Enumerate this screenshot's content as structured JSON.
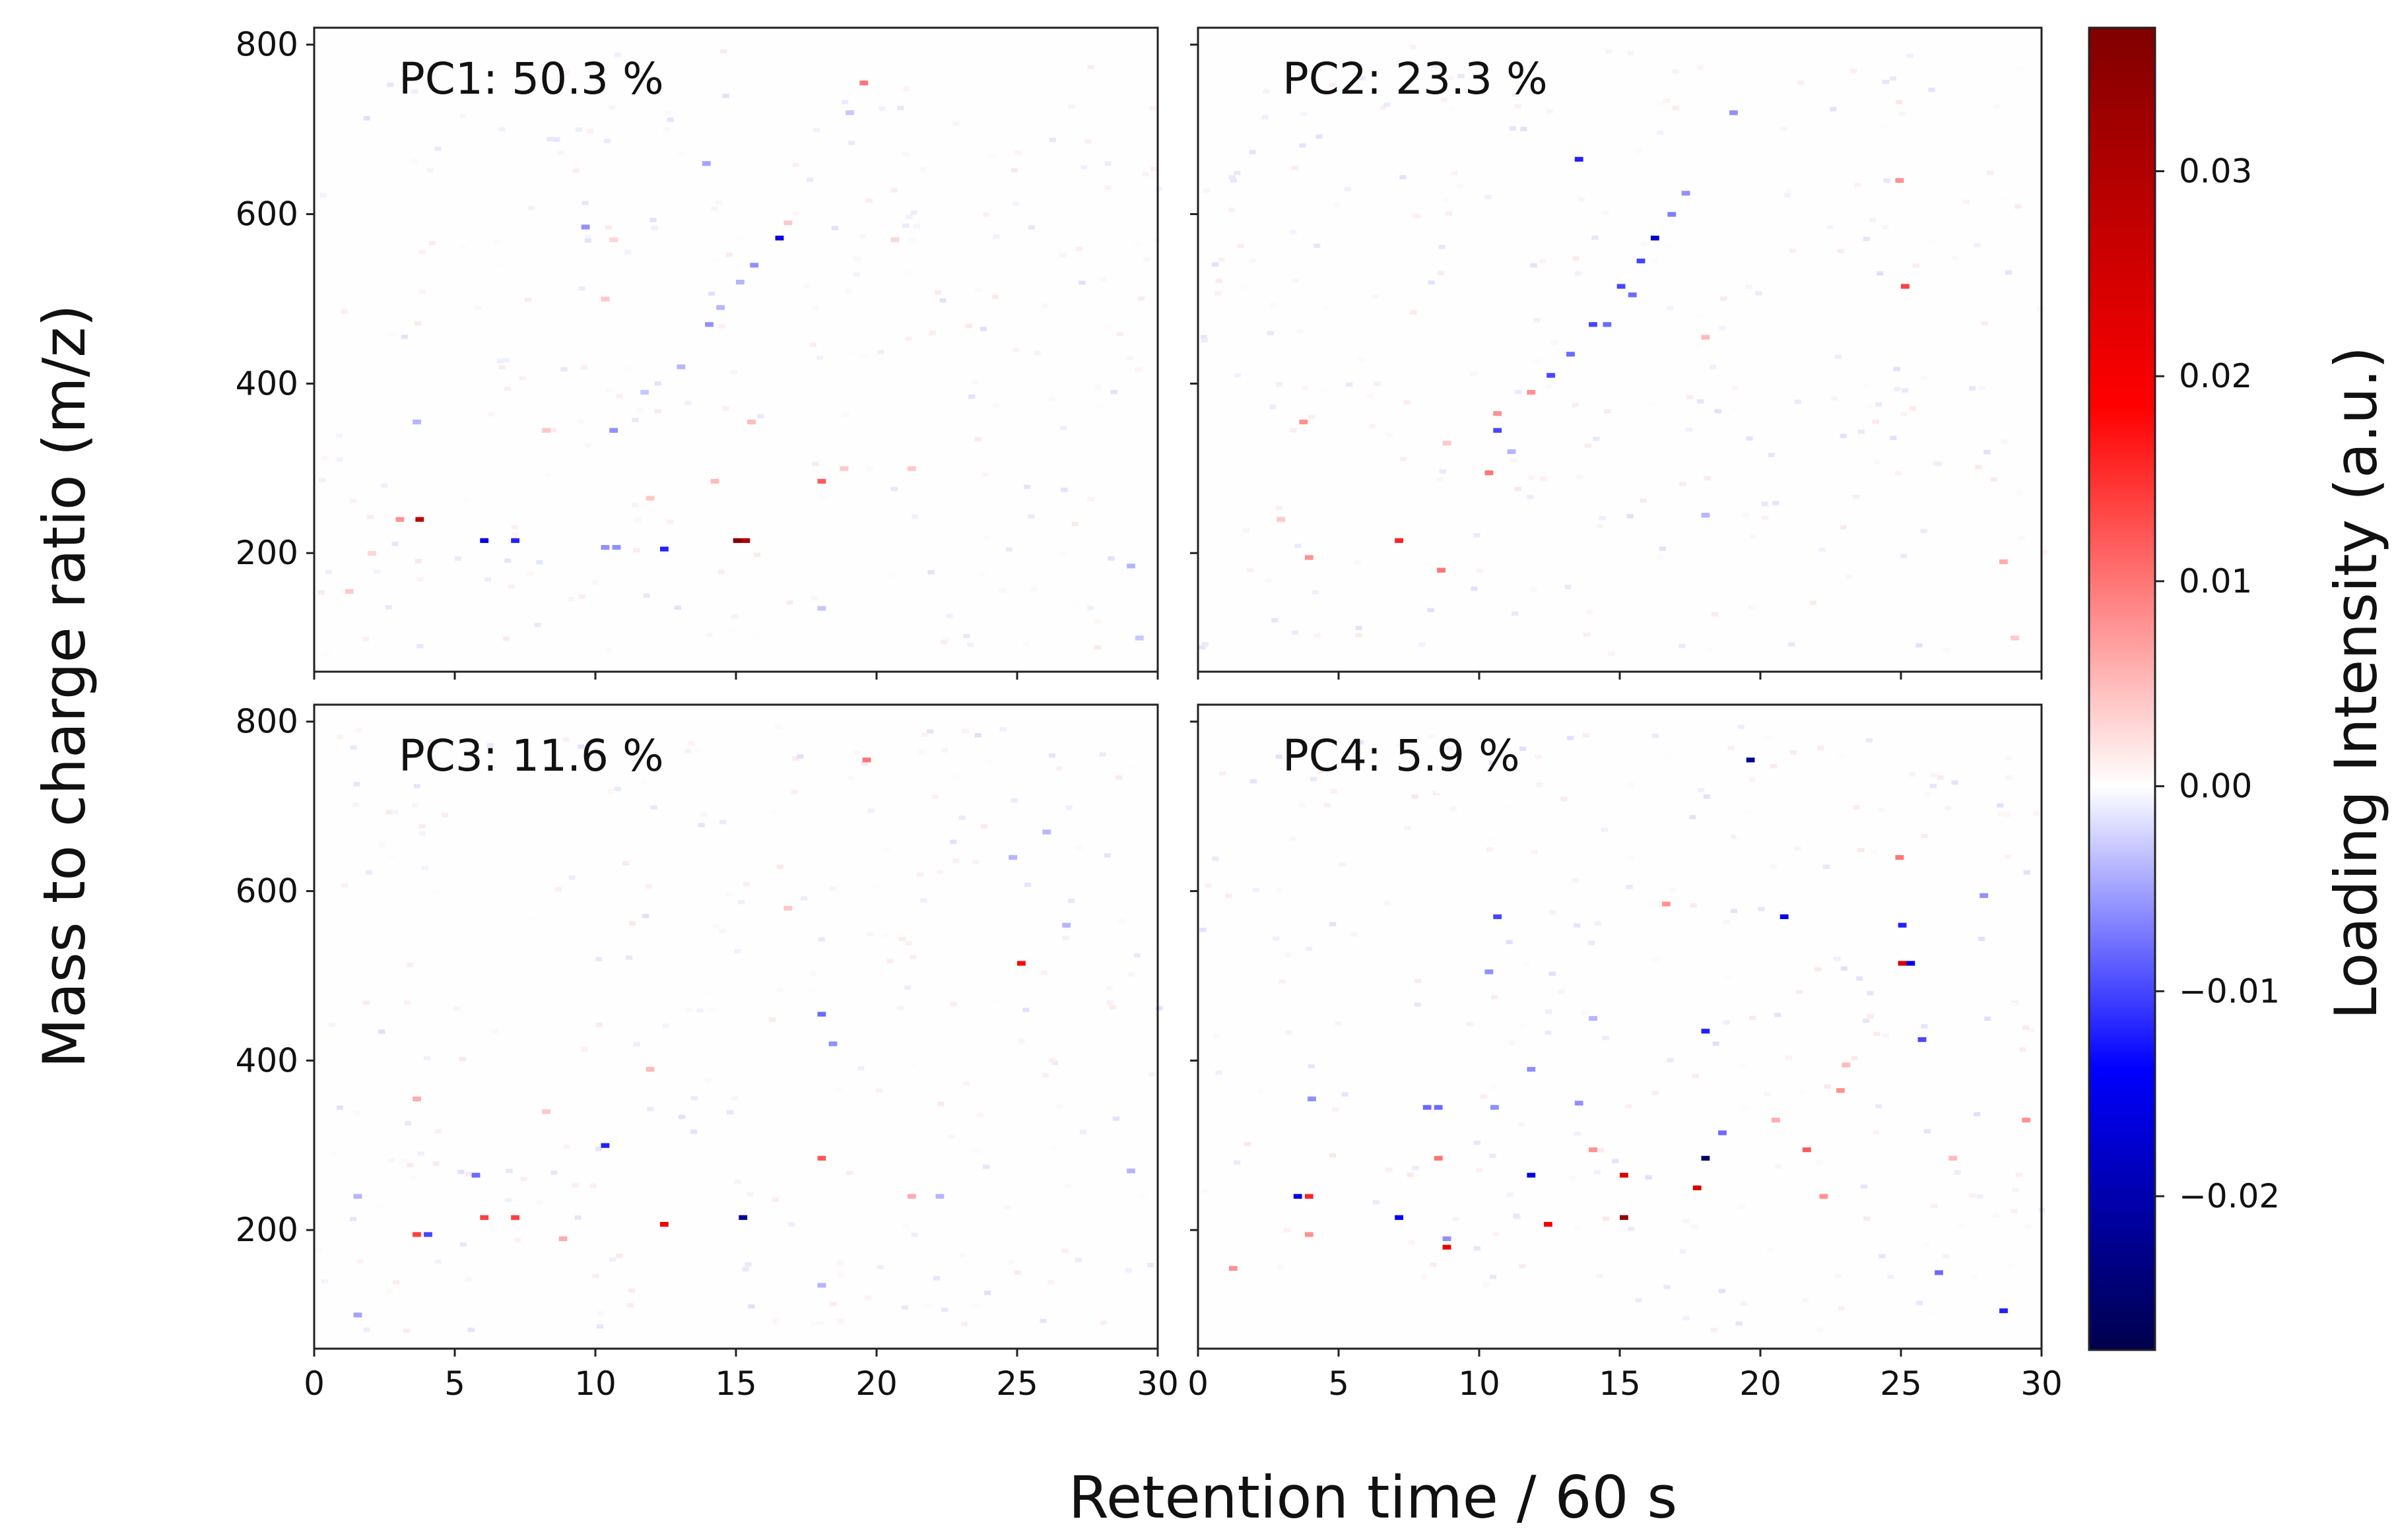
{
  "chart_data": {
    "type": "heatmap",
    "xlabel": "Retention time / 60 s",
    "ylabel": "Mass to charge ratio (m/z)",
    "xlim": [
      0,
      30
    ],
    "ylim": [
      60,
      820
    ],
    "x_ticks": [
      "0",
      "5",
      "10",
      "15",
      "20",
      "25",
      "30"
    ],
    "y_ticks": [
      "200",
      "400",
      "600",
      "800"
    ],
    "colorbar": {
      "label": "Loading Intensity (a.u.)",
      "range": [
        -0.0275,
        0.037
      ],
      "ticks": [
        "0.03",
        "0.02",
        "0.01",
        "0.00",
        "−0.01",
        "−0.02"
      ],
      "tick_values": [
        0.03,
        0.02,
        0.01,
        0.0,
        -0.01,
        -0.02
      ],
      "colormap": "seismic",
      "colors": [
        "#00004c",
        "#0000ff",
        "#ffffff",
        "#ff0000",
        "#800000"
      ]
    },
    "panels": [
      {
        "title": "PC1: 50.3 %",
        "points": [
          {
            "x": 3.7,
            "y": 240,
            "v": 0.028
          },
          {
            "x": 3.0,
            "y": 240,
            "v": 0.008
          },
          {
            "x": 6.0,
            "y": 215,
            "v": -0.016
          },
          {
            "x": 7.1,
            "y": 215,
            "v": -0.012
          },
          {
            "x": 10.3,
            "y": 207,
            "v": -0.006
          },
          {
            "x": 10.7,
            "y": 207,
            "v": -0.006
          },
          {
            "x": 12.4,
            "y": 205,
            "v": -0.012
          },
          {
            "x": 15.0,
            "y": 215,
            "v": 0.036
          },
          {
            "x": 15.3,
            "y": 215,
            "v": 0.03
          },
          {
            "x": 18.0,
            "y": 285,
            "v": 0.012
          },
          {
            "x": 16.5,
            "y": 572,
            "v": -0.016
          },
          {
            "x": 15.6,
            "y": 540,
            "v": -0.006
          },
          {
            "x": 15.1,
            "y": 520,
            "v": -0.004
          },
          {
            "x": 14.4,
            "y": 490,
            "v": -0.004
          },
          {
            "x": 14.0,
            "y": 470,
            "v": -0.006
          },
          {
            "x": 13.0,
            "y": 420,
            "v": -0.004
          },
          {
            "x": 10.6,
            "y": 345,
            "v": -0.006
          },
          {
            "x": 9.6,
            "y": 585,
            "v": -0.006
          },
          {
            "x": 13.9,
            "y": 660,
            "v": -0.005
          },
          {
            "x": 19.5,
            "y": 755,
            "v": 0.01
          },
          {
            "x": 3.6,
            "y": 355,
            "v": -0.004
          },
          {
            "x": 8.2,
            "y": 345,
            "v": 0.004
          },
          {
            "x": 11.7,
            "y": 390,
            "v": -0.003
          },
          {
            "x": 14.2,
            "y": 285,
            "v": 0.005
          },
          {
            "x": 15.5,
            "y": 355,
            "v": 0.005
          },
          {
            "x": 11.9,
            "y": 265,
            "v": 0.004
          },
          {
            "x": 2.0,
            "y": 200,
            "v": 0.003
          },
          {
            "x": 1.2,
            "y": 155,
            "v": 0.004
          },
          {
            "x": 18.8,
            "y": 300,
            "v": 0.004
          },
          {
            "x": 21.2,
            "y": 300,
            "v": 0.004
          },
          {
            "x": 18.0,
            "y": 135,
            "v": -0.003
          },
          {
            "x": 29.0,
            "y": 185,
            "v": -0.004
          },
          {
            "x": 29.3,
            "y": 100,
            "v": -0.003
          },
          {
            "x": 10.3,
            "y": 500,
            "v": 0.004
          },
          {
            "x": 10.6,
            "y": 570,
            "v": 0.003
          },
          {
            "x": 20.6,
            "y": 570,
            "v": 0.003
          },
          {
            "x": 16.8,
            "y": 590,
            "v": 0.004
          },
          {
            "x": 19.0,
            "y": 720,
            "v": -0.003
          }
        ]
      },
      {
        "title": "PC2: 23.3 %",
        "points": [
          {
            "x": 3.7,
            "y": 355,
            "v": 0.008
          },
          {
            "x": 3.9,
            "y": 195,
            "v": 0.008
          },
          {
            "x": 7.1,
            "y": 215,
            "v": 0.016
          },
          {
            "x": 8.6,
            "y": 180,
            "v": 0.01
          },
          {
            "x": 10.3,
            "y": 295,
            "v": 0.01
          },
          {
            "x": 10.6,
            "y": 345,
            "v": -0.01
          },
          {
            "x": 10.6,
            "y": 365,
            "v": 0.008
          },
          {
            "x": 11.8,
            "y": 390,
            "v": 0.008
          },
          {
            "x": 12.5,
            "y": 410,
            "v": -0.01
          },
          {
            "x": 13.2,
            "y": 435,
            "v": -0.008
          },
          {
            "x": 14.0,
            "y": 470,
            "v": -0.01
          },
          {
            "x": 14.5,
            "y": 470,
            "v": -0.008
          },
          {
            "x": 15.0,
            "y": 515,
            "v": -0.01
          },
          {
            "x": 15.4,
            "y": 505,
            "v": -0.008
          },
          {
            "x": 15.7,
            "y": 545,
            "v": -0.01
          },
          {
            "x": 16.2,
            "y": 572,
            "v": -0.018
          },
          {
            "x": 16.8,
            "y": 600,
            "v": -0.007
          },
          {
            "x": 17.3,
            "y": 625,
            "v": -0.006
          },
          {
            "x": 13.5,
            "y": 665,
            "v": -0.012
          },
          {
            "x": 19.0,
            "y": 720,
            "v": -0.006
          },
          {
            "x": 25.1,
            "y": 515,
            "v": 0.014
          },
          {
            "x": 24.9,
            "y": 640,
            "v": 0.008
          },
          {
            "x": 18.0,
            "y": 455,
            "v": 0.005
          },
          {
            "x": 11.1,
            "y": 320,
            "v": -0.004
          },
          {
            "x": 18.0,
            "y": 245,
            "v": -0.004
          },
          {
            "x": 28.6,
            "y": 190,
            "v": 0.006
          },
          {
            "x": 29.0,
            "y": 100,
            "v": 0.004
          },
          {
            "x": 2.9,
            "y": 240,
            "v": 0.004
          },
          {
            "x": 8.8,
            "y": 330,
            "v": 0.004
          }
        ]
      },
      {
        "title": "PC3: 11.6 %",
        "points": [
          {
            "x": 3.6,
            "y": 195,
            "v": 0.014
          },
          {
            "x": 4.0,
            "y": 195,
            "v": -0.01
          },
          {
            "x": 6.0,
            "y": 215,
            "v": 0.014
          },
          {
            "x": 7.1,
            "y": 215,
            "v": 0.014
          },
          {
            "x": 10.3,
            "y": 300,
            "v": -0.012
          },
          {
            "x": 12.4,
            "y": 207,
            "v": 0.02
          },
          {
            "x": 15.2,
            "y": 215,
            "v": -0.022
          },
          {
            "x": 18.0,
            "y": 285,
            "v": 0.012
          },
          {
            "x": 18.0,
            "y": 455,
            "v": -0.008
          },
          {
            "x": 18.4,
            "y": 420,
            "v": -0.006
          },
          {
            "x": 25.1,
            "y": 515,
            "v": 0.018
          },
          {
            "x": 24.8,
            "y": 640,
            "v": -0.004
          },
          {
            "x": 26.0,
            "y": 670,
            "v": -0.004
          },
          {
            "x": 26.7,
            "y": 560,
            "v": -0.004
          },
          {
            "x": 19.6,
            "y": 755,
            "v": 0.01
          },
          {
            "x": 3.6,
            "y": 355,
            "v": 0.006
          },
          {
            "x": 5.7,
            "y": 265,
            "v": -0.008
          },
          {
            "x": 8.8,
            "y": 190,
            "v": 0.006
          },
          {
            "x": 21.2,
            "y": 240,
            "v": 0.006
          },
          {
            "x": 22.2,
            "y": 240,
            "v": -0.004
          },
          {
            "x": 18.0,
            "y": 135,
            "v": -0.004
          },
          {
            "x": 1.5,
            "y": 240,
            "v": -0.004
          },
          {
            "x": 1.5,
            "y": 100,
            "v": -0.005
          },
          {
            "x": 11.9,
            "y": 390,
            "v": 0.005
          },
          {
            "x": 16.8,
            "y": 580,
            "v": 0.004
          },
          {
            "x": 29.0,
            "y": 270,
            "v": -0.004
          },
          {
            "x": 8.2,
            "y": 340,
            "v": 0.004
          }
        ]
      },
      {
        "title": "PC4:  5.9 %",
        "points": [
          {
            "x": 19.6,
            "y": 755,
            "v": -0.022
          },
          {
            "x": 20.8,
            "y": 570,
            "v": -0.016
          },
          {
            "x": 10.6,
            "y": 570,
            "v": -0.01
          },
          {
            "x": 25.0,
            "y": 560,
            "v": -0.012
          },
          {
            "x": 25.0,
            "y": 515,
            "v": 0.024
          },
          {
            "x": 25.3,
            "y": 515,
            "v": -0.016
          },
          {
            "x": 24.9,
            "y": 640,
            "v": 0.01
          },
          {
            "x": 25.7,
            "y": 425,
            "v": -0.01
          },
          {
            "x": 18.0,
            "y": 285,
            "v": -0.026
          },
          {
            "x": 18.0,
            "y": 435,
            "v": -0.012
          },
          {
            "x": 17.7,
            "y": 250,
            "v": 0.024
          },
          {
            "x": 15.1,
            "y": 215,
            "v": 0.034
          },
          {
            "x": 15.1,
            "y": 265,
            "v": 0.024
          },
          {
            "x": 12.4,
            "y": 207,
            "v": 0.02
          },
          {
            "x": 11.8,
            "y": 265,
            "v": -0.016
          },
          {
            "x": 8.8,
            "y": 180,
            "v": 0.022
          },
          {
            "x": 8.8,
            "y": 190,
            "v": -0.006
          },
          {
            "x": 7.1,
            "y": 215,
            "v": -0.014
          },
          {
            "x": 3.5,
            "y": 240,
            "v": -0.016
          },
          {
            "x": 3.9,
            "y": 240,
            "v": 0.016
          },
          {
            "x": 3.9,
            "y": 195,
            "v": 0.008
          },
          {
            "x": 8.1,
            "y": 345,
            "v": -0.008
          },
          {
            "x": 8.5,
            "y": 345,
            "v": -0.008
          },
          {
            "x": 10.5,
            "y": 345,
            "v": -0.006
          },
          {
            "x": 11.8,
            "y": 390,
            "v": -0.006
          },
          {
            "x": 13.5,
            "y": 350,
            "v": -0.006
          },
          {
            "x": 14.0,
            "y": 295,
            "v": 0.008
          },
          {
            "x": 18.6,
            "y": 315,
            "v": -0.008
          },
          {
            "x": 21.6,
            "y": 295,
            "v": 0.012
          },
          {
            "x": 22.8,
            "y": 365,
            "v": 0.008
          },
          {
            "x": 22.2,
            "y": 240,
            "v": 0.008
          },
          {
            "x": 26.3,
            "y": 150,
            "v": -0.008
          },
          {
            "x": 28.6,
            "y": 105,
            "v": -0.012
          },
          {
            "x": 1.2,
            "y": 155,
            "v": 0.008
          },
          {
            "x": 8.5,
            "y": 285,
            "v": 0.01
          },
          {
            "x": 10.3,
            "y": 505,
            "v": -0.006
          },
          {
            "x": 16.6,
            "y": 585,
            "v": 0.008
          },
          {
            "x": 27.9,
            "y": 595,
            "v": -0.006
          },
          {
            "x": 29.4,
            "y": 330,
            "v": 0.008
          },
          {
            "x": 20.5,
            "y": 330,
            "v": 0.006
          },
          {
            "x": 4.0,
            "y": 355,
            "v": -0.006
          },
          {
            "x": 26.8,
            "y": 285,
            "v": 0.005
          },
          {
            "x": 14.0,
            "y": 450,
            "v": -0.004
          },
          {
            "x": 23.0,
            "y": 395,
            "v": 0.005
          }
        ]
      }
    ]
  }
}
